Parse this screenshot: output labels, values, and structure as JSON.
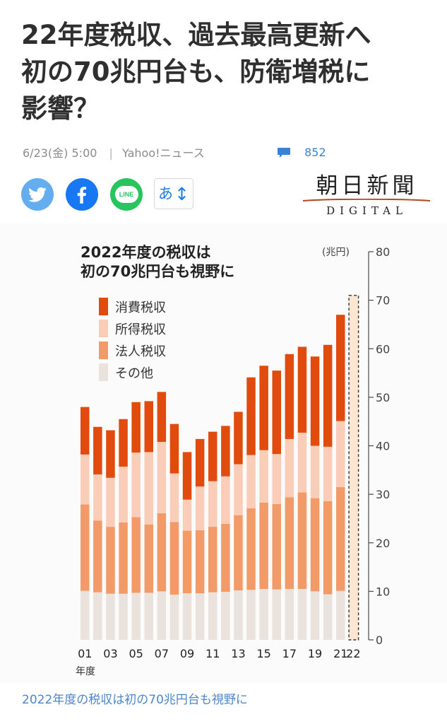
{
  "article": {
    "headline_lines": [
      "22年度税収、過去最高更新へ",
      "初の70兆円台も、防衛増税に",
      "影響？"
    ],
    "datetime": "6/23(金) 5:00",
    "source": "Yahoo!ニュース",
    "comment_count": "852",
    "caption": "2022年度の税収は初の70兆円台も視野に"
  },
  "share": {
    "twitter": "twitter-icon",
    "facebook": "facebook-icon",
    "line": "LINE",
    "font_button": "あ"
  },
  "logo": {
    "main": "朝日新聞",
    "sub": "DIGITAL"
  },
  "colors": {
    "consumption": "#e14c0e",
    "corporate": "#f9cdb7",
    "income": "#f39a69",
    "other": "#e9e2dd",
    "projection": "#fde6d1",
    "accent": "#3b82d6"
  },
  "chart_data": {
    "type": "bar",
    "stacked": true,
    "title_lines": [
      "2022年度の税収は",
      "初の70兆円台も視野に"
    ],
    "xlabel": "年度",
    "ylabel": "(兆円)",
    "ylim": [
      0,
      80
    ],
    "yticks": [
      0,
      10,
      20,
      30,
      40,
      50,
      60,
      70,
      80
    ],
    "legend_position": "top-left",
    "grid": false,
    "categories": [
      "01",
      "02",
      "03",
      "04",
      "05",
      "06",
      "07",
      "08",
      "09",
      "10",
      "11",
      "12",
      "13",
      "14",
      "15",
      "16",
      "17",
      "18",
      "19",
      "20",
      "21",
      "22"
    ],
    "xtick_labels": [
      "01",
      "03",
      "05",
      "07",
      "09",
      "11",
      "13",
      "15",
      "17",
      "19",
      "21",
      "22"
    ],
    "series": [
      {
        "name": "消費税収",
        "values": [
          9.8,
          9.8,
          9.8,
          9.8,
          10.4,
          10.5,
          10.3,
          10.2,
          9.8,
          9.8,
          10.2,
          10.4,
          10.8,
          16.0,
          17.4,
          17.2,
          17.5,
          17.7,
          18.4,
          21.0,
          21.9,
          null
        ]
      },
      {
        "name": "法人税収",
        "values": [
          10.3,
          9.5,
          10.1,
          11.5,
          13.3,
          14.9,
          14.7,
          10.0,
          6.4,
          9.0,
          9.4,
          9.8,
          10.5,
          11.0,
          10.8,
          10.3,
          12.0,
          12.3,
          10.8,
          11.2,
          13.6,
          null
        ]
      },
      {
        "name": "所得税収",
        "values": [
          17.8,
          14.8,
          13.8,
          14.7,
          15.6,
          14.1,
          16.1,
          15.0,
          12.9,
          13.0,
          13.5,
          14.0,
          15.5,
          16.8,
          17.8,
          17.6,
          18.9,
          19.9,
          19.2,
          19.2,
          21.4,
          null
        ]
      },
      {
        "name": "その他",
        "values": [
          10.1,
          9.8,
          9.5,
          9.5,
          9.7,
          9.7,
          10.0,
          9.3,
          9.6,
          9.6,
          9.8,
          9.9,
          10.2,
          10.3,
          10.5,
          10.4,
          10.5,
          10.5,
          10.0,
          9.4,
          10.1,
          null
        ]
      }
    ],
    "projection": {
      "category": "22",
      "value": 71.0
    }
  }
}
